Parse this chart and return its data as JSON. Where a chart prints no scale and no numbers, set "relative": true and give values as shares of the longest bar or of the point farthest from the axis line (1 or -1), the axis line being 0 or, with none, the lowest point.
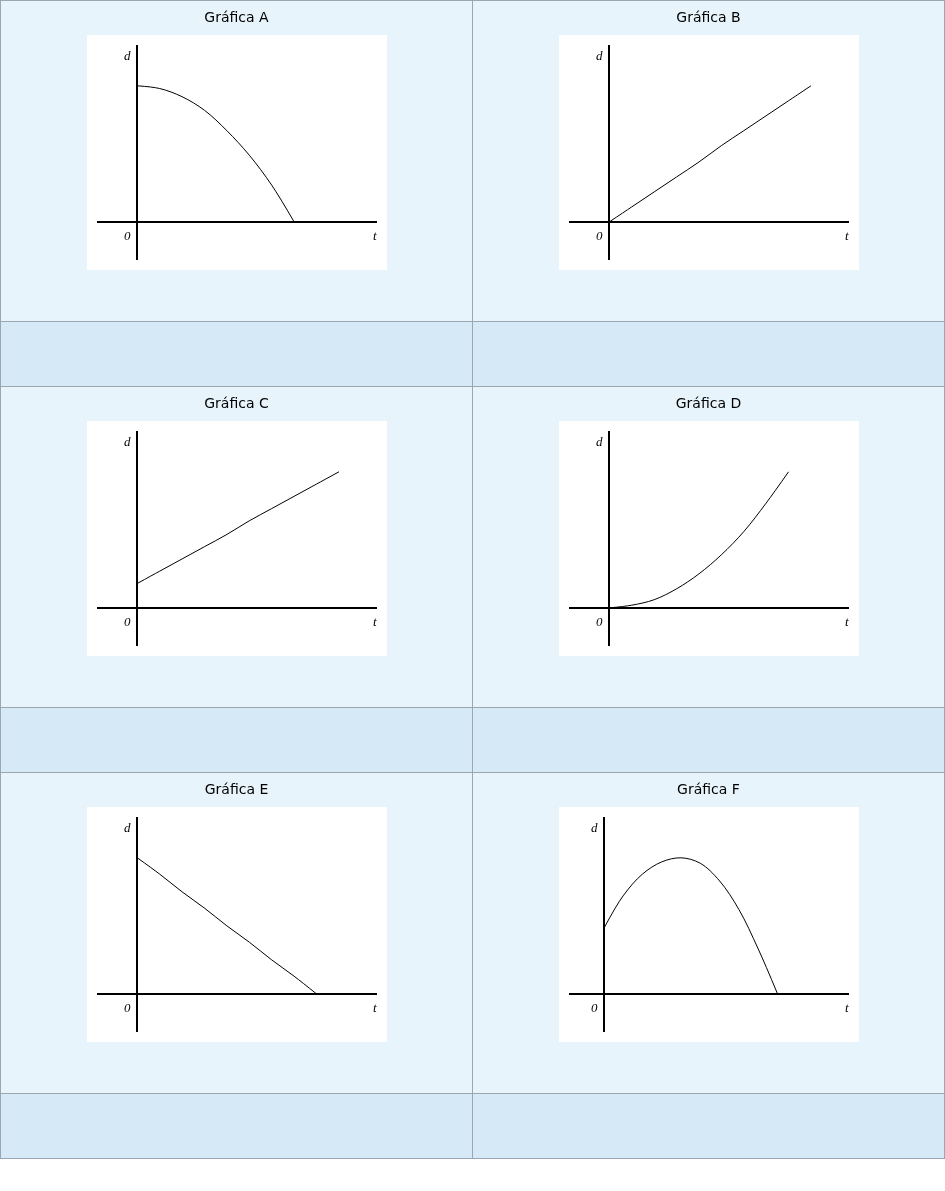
{
  "chart_data": [
    {
      "type": "line",
      "title": "Gráfica A",
      "xlabel": "t",
      "ylabel": "d",
      "annotations": [
        "0"
      ],
      "relative": true,
      "categories": [
        null,
        null,
        null,
        null,
        null,
        null,
        null,
        null,
        null,
        null,
        null
      ],
      "series": [
        {
          "color": "#000000",
          "values": [
            1,
            0.98,
            0.92,
            0.82,
            0.67,
            0.49,
            0.27,
            0,
            null,
            null,
            null
          ]
        }
      ]
    },
    {
      "type": "line",
      "title": "Gráfica B",
      "xlabel": "t",
      "ylabel": "d",
      "annotations": [
        "0"
      ],
      "relative": true,
      "categories": [
        null,
        null,
        null,
        null,
        null,
        null,
        null,
        null,
        null,
        null,
        null
      ],
      "series": [
        {
          "color": "#000000",
          "values": [
            0,
            0.11,
            0.22,
            0.33,
            0.44,
            0.56,
            0.67,
            0.78,
            0.89,
            1,
            null
          ]
        }
      ]
    },
    {
      "type": "line",
      "title": "Gráfica C",
      "xlabel": "t",
      "ylabel": "d",
      "annotations": [
        "0"
      ],
      "relative": true,
      "categories": [
        null,
        null,
        null,
        null,
        null,
        null,
        null,
        null,
        null,
        null,
        null
      ],
      "series": [
        {
          "color": "#000000",
          "values": [
            0.18,
            0.27,
            0.36,
            0.45,
            0.54,
            0.64,
            0.73,
            0.82,
            0.91,
            1,
            null
          ]
        }
      ]
    },
    {
      "type": "line",
      "title": "Gráfica D",
      "xlabel": "t",
      "ylabel": "d",
      "annotations": [
        "0"
      ],
      "relative": true,
      "categories": [
        null,
        null,
        null,
        null,
        null,
        null,
        null,
        null,
        null,
        null,
        null
      ],
      "series": [
        {
          "color": "#000000",
          "values": [
            0,
            0.02,
            0.06,
            0.14,
            0.25,
            0.39,
            0.56,
            0.77,
            1,
            null,
            null
          ]
        }
      ]
    },
    {
      "type": "line",
      "title": "Gráfica E",
      "xlabel": "t",
      "ylabel": "d",
      "annotations": [
        "0"
      ],
      "relative": true,
      "categories": [
        null,
        null,
        null,
        null,
        null,
        null,
        null,
        null,
        null,
        null,
        null
      ],
      "series": [
        {
          "color": "#000000",
          "values": [
            1,
            0.88,
            0.75,
            0.63,
            0.5,
            0.38,
            0.25,
            0.13,
            0,
            null,
            null
          ]
        }
      ]
    },
    {
      "type": "line",
      "title": "Gráfica F",
      "xlabel": "t",
      "ylabel": "d",
      "annotations": [
        "0"
      ],
      "relative": true,
      "categories": [
        null,
        null,
        null,
        null,
        null,
        null,
        null,
        null,
        null,
        null,
        null,
        null,
        null
      ],
      "series": [
        {
          "color": "#000000",
          "values": [
            0.48,
            0.72,
            0.88,
            0.97,
            1,
            0.96,
            0.83,
            0.62,
            0.33,
            0,
            null,
            null,
            null
          ]
        }
      ]
    }
  ]
}
